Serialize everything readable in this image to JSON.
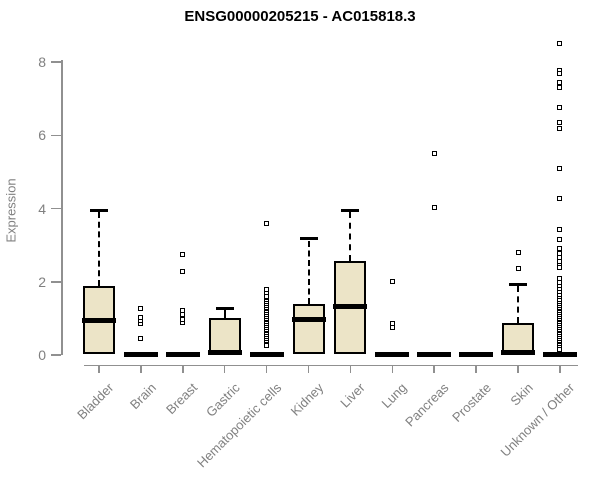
{
  "chart_data": {
    "type": "boxplot",
    "title": "ENSG00000205215 - AC015818.3",
    "xlabel": "",
    "ylabel": "Expression",
    "ylim": [
      0,
      8.6
    ],
    "yticks": [
      0,
      2,
      4,
      6,
      8
    ],
    "grid": false,
    "legend": "none",
    "categories": [
      "Bladder",
      "Brain",
      "Breast",
      "Gastric",
      "Hematopoietic cells",
      "Kidney",
      "Liver",
      "Lung",
      "Pancreas",
      "Prostate",
      "Skin",
      "Unknown / Other"
    ],
    "series": [
      {
        "name": "Bladder",
        "q1": 0.02,
        "median": 0.93,
        "q3": 1.88,
        "whisker_low": 0.02,
        "whisker_high": 3.95,
        "outliers": []
      },
      {
        "name": "Brain",
        "q1": 0,
        "median": 0.02,
        "q3": 0.05,
        "whisker_low": 0,
        "whisker_high": 0.05,
        "outliers": [
          0.46,
          0.85,
          0.95,
          1.03,
          1.28
        ]
      },
      {
        "name": "Breast",
        "q1": 0,
        "median": 0.02,
        "q3": 0.05,
        "whisker_low": 0,
        "whisker_high": 0.05,
        "outliers": [
          0.88,
          0.98,
          1.1,
          1.22,
          2.28,
          2.75
        ]
      },
      {
        "name": "Gastric",
        "q1": 0,
        "median": 0.06,
        "q3": 1.0,
        "whisker_low": 0,
        "whisker_high": 1.28,
        "outliers": []
      },
      {
        "name": "Hematopoietic cells",
        "q1": 0,
        "median": 0.02,
        "q3": 0.05,
        "whisker_low": 0,
        "whisker_high": 0.05,
        "outliers": [
          3.6,
          1.78,
          1.68,
          1.6,
          1.5,
          1.45,
          1.4,
          1.35,
          1.3,
          1.25,
          1.2,
          1.15,
          1.1,
          1.05,
          1.0,
          0.95,
          0.9,
          0.85,
          0.8,
          0.75,
          0.7,
          0.65,
          0.6,
          0.55,
          0.5,
          0.45,
          0.4,
          0.35,
          0.3,
          0.25
        ]
      },
      {
        "name": "Kidney",
        "q1": 0.03,
        "median": 0.97,
        "q3": 1.4,
        "whisker_low": 0.03,
        "whisker_high": 3.17,
        "outliers": []
      },
      {
        "name": "Liver",
        "q1": 0.03,
        "median": 1.32,
        "q3": 2.58,
        "whisker_low": 0.03,
        "whisker_high": 3.96,
        "outliers": []
      },
      {
        "name": "Lung",
        "q1": 0,
        "median": 0.02,
        "q3": 0.05,
        "whisker_low": 0,
        "whisker_high": 0.05,
        "outliers": [
          0.75,
          0.87,
          2.02
        ]
      },
      {
        "name": "Pancreas",
        "q1": 0,
        "median": 0.02,
        "q3": 0.05,
        "whisker_low": 0,
        "whisker_high": 0.05,
        "outliers": [
          4.02,
          5.5
        ]
      },
      {
        "name": "Prostate",
        "q1": 0,
        "median": 0.02,
        "q3": 0.05,
        "whisker_low": 0,
        "whisker_high": 0.05,
        "outliers": []
      },
      {
        "name": "Skin",
        "q1": 0,
        "median": 0.06,
        "q3": 0.88,
        "whisker_low": 0,
        "whisker_high": 1.93,
        "outliers": [
          2.35,
          2.8
        ]
      },
      {
        "name": "Unknown / Other",
        "q1": 0,
        "median": 0.02,
        "q3": 0.05,
        "whisker_low": 0,
        "whisker_high": 0.05,
        "outliers": [
          8.5,
          7.78,
          7.7,
          7.45,
          7.32,
          6.75,
          6.35,
          6.2,
          5.1,
          4.27,
          3.43,
          3.16,
          2.9,
          2.78,
          2.66,
          2.55,
          2.45,
          2.38,
          2.1,
          1.97,
          1.88,
          1.78,
          1.7,
          1.62,
          1.55,
          1.48,
          1.42,
          1.36,
          1.3,
          1.25,
          1.2,
          1.15,
          1.1,
          1.05,
          1.0,
          0.95,
          0.9,
          0.85,
          0.8,
          0.75,
          0.7,
          0.65,
          0.6,
          0.55,
          0.5,
          0.45,
          0.4,
          0.35,
          0.3,
          0.25,
          0.2,
          0.15
        ]
      }
    ],
    "colors": {
      "box_fill": "#ece4c7",
      "box_border": "#000000",
      "median": "#000000",
      "whisker": "#000000",
      "outlier_border": "#000000",
      "outlier_fill": "#ffffff",
      "axis": "#909090",
      "tick_label": "#808080",
      "title": "#000000"
    }
  }
}
